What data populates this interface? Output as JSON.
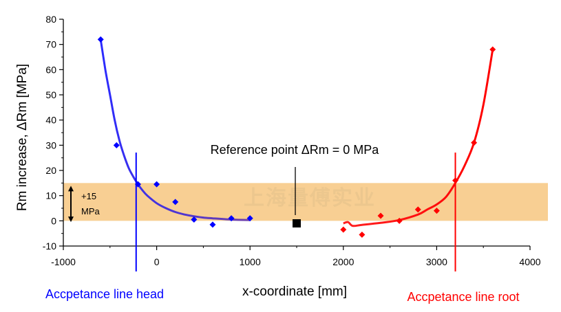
{
  "chart_data": {
    "type": "scatter",
    "xlabel": "x-coordinate [mm]",
    "ylabel": "Rm increase, ΔRm [MPa]",
    "xlim": [
      -1000,
      4000
    ],
    "ylim": [
      -10,
      80
    ],
    "x_ticks": [
      -1000,
      0,
      1000,
      2000,
      3000,
      4000
    ],
    "y_ticks": [
      -10,
      0,
      10,
      20,
      30,
      40,
      50,
      60,
      70,
      80
    ],
    "x_tick_labels": [
      "-1000",
      "0",
      "1000",
      "2000",
      "3000",
      "4000"
    ],
    "y_tick_labels": [
      "-10",
      "0",
      "10",
      "20",
      "30",
      "40",
      "50",
      "60",
      "70",
      "80"
    ],
    "band": {
      "y_min": 0,
      "y_max": 15,
      "color": "#f8cf93",
      "label_line1": "+15",
      "label_line2": "MPa"
    },
    "reference_point": {
      "x": 1500,
      "y": -1,
      "label": "Reference point ΔRm = 0 MPa"
    },
    "series": [
      {
        "name": "head",
        "color": "#0000ff",
        "points": [
          [
            -600,
            72
          ],
          [
            -430,
            30
          ],
          [
            -200,
            14.5
          ],
          [
            0,
            14.5
          ],
          [
            200,
            7.5
          ],
          [
            400,
            0.5
          ],
          [
            600,
            -1.5
          ],
          [
            800,
            1
          ],
          [
            1000,
            1
          ]
        ],
        "fit": [
          [
            -600,
            72
          ],
          [
            -550,
            60
          ],
          [
            -500,
            50
          ],
          [
            -450,
            40
          ],
          [
            -400,
            32
          ],
          [
            -350,
            26
          ],
          [
            -300,
            21
          ],
          [
            -250,
            17.5
          ],
          [
            -200,
            14.5
          ],
          [
            -150,
            12
          ],
          [
            -100,
            10
          ],
          [
            0,
            7
          ],
          [
            100,
            5
          ],
          [
            200,
            3.5
          ],
          [
            300,
            2.5
          ],
          [
            400,
            1.8
          ],
          [
            500,
            1.3
          ],
          [
            600,
            1
          ],
          [
            800,
            0.5
          ],
          [
            1000,
            0.3
          ]
        ],
        "fit_color_start": "#2b2bff",
        "fit_color_end": "#7040a8"
      },
      {
        "name": "root",
        "color": "#ff0000",
        "points": [
          [
            2000,
            -3.5
          ],
          [
            2200,
            -5.5
          ],
          [
            2400,
            2
          ],
          [
            2600,
            0
          ],
          [
            2800,
            4.5
          ],
          [
            3000,
            4
          ],
          [
            3200,
            16
          ],
          [
            3400,
            31
          ],
          [
            3600,
            68
          ]
        ],
        "fit": [
          [
            2000,
            -1
          ],
          [
            2050,
            -0.5
          ],
          [
            2100,
            -2
          ],
          [
            2200,
            -1.6
          ],
          [
            2400,
            -0.8
          ],
          [
            2600,
            0.3
          ],
          [
            2800,
            2.5
          ],
          [
            2900,
            4.5
          ],
          [
            3000,
            6.5
          ],
          [
            3100,
            9.5
          ],
          [
            3200,
            15
          ],
          [
            3300,
            22
          ],
          [
            3400,
            31
          ],
          [
            3500,
            46
          ],
          [
            3600,
            68
          ]
        ],
        "fit_color_start": "#ff2020",
        "fit_color_end": "#ff0000"
      }
    ],
    "acceptance_lines": [
      {
        "name": "head",
        "x": -220,
        "color": "#0000ff",
        "label": "Accpetance line head"
      },
      {
        "name": "root",
        "x": 3200,
        "color": "#ff0000",
        "label": "Accpetance line root"
      }
    ],
    "watermark": "上海量傅实业"
  }
}
